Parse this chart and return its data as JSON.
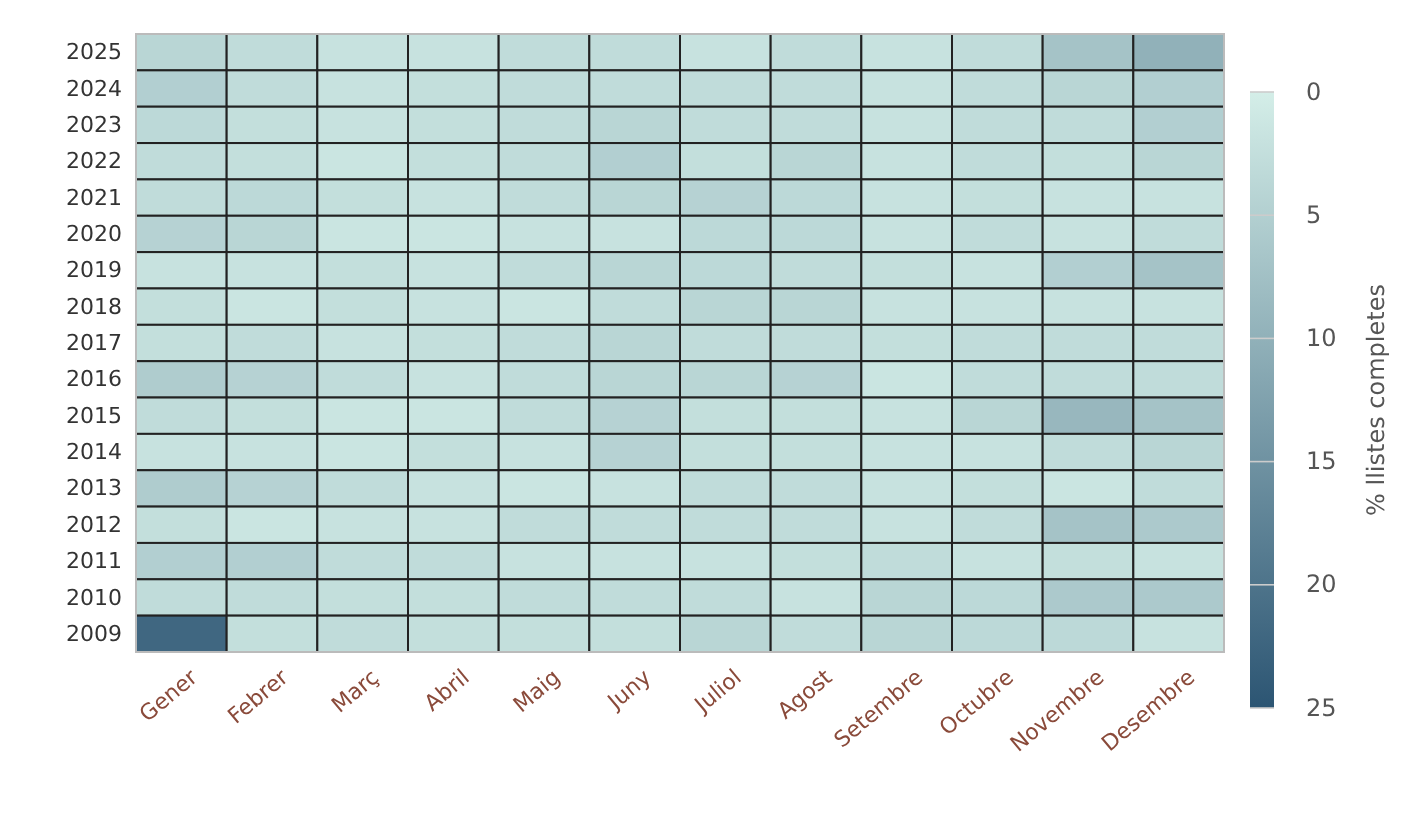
{
  "chart_data": {
    "type": "heatmap",
    "clabel": "% llistes completes",
    "categories": [
      "Gener",
      "Febrer",
      "Març",
      "Abril",
      "Maig",
      "Juny",
      "Juliol",
      "Agost",
      "Setembre",
      "Octubre",
      "Novembre",
      "Desembre"
    ],
    "y_categories": [
      "2025",
      "2024",
      "2023",
      "2022",
      "2021",
      "2020",
      "2019",
      "2018",
      "2017",
      "2016",
      "2015",
      "2014",
      "2013",
      "2012",
      "2011",
      "2010",
      "2009"
    ],
    "cells": [
      [
        4,
        3,
        2,
        2,
        3,
        3,
        2,
        3,
        2,
        3,
        7,
        10
      ],
      [
        5,
        3,
        2,
        2.5,
        3,
        3,
        3,
        3,
        2,
        3,
        4,
        5
      ],
      [
        3.5,
        2.5,
        2,
        2.5,
        3,
        4,
        3,
        3,
        2,
        3,
        3,
        5
      ],
      [
        3,
        2.5,
        1.5,
        2.5,
        3,
        5,
        2.5,
        4,
        2,
        3,
        2.5,
        4
      ],
      [
        3,
        3.5,
        2.5,
        2,
        3,
        4,
        4.5,
        3.5,
        2,
        2.5,
        2,
        2
      ],
      [
        4.5,
        4,
        1.5,
        1.5,
        2,
        2,
        3.5,
        3.5,
        2,
        3,
        2,
        3
      ],
      [
        2,
        2,
        2.5,
        2,
        3,
        4,
        3.5,
        3,
        2.5,
        2,
        5,
        7
      ],
      [
        2.5,
        1.5,
        2.5,
        2,
        1.5,
        3,
        4,
        4,
        2,
        2,
        2,
        2
      ],
      [
        2.5,
        3,
        2,
        2.5,
        3,
        4,
        3,
        3,
        2.5,
        3,
        3,
        3
      ],
      [
        5.5,
        4.5,
        3,
        2,
        3,
        4,
        4,
        4.5,
        1.5,
        3,
        3,
        3
      ],
      [
        3,
        2.5,
        1.5,
        1.5,
        3,
        4.5,
        2.5,
        2.5,
        2,
        4,
        9,
        7
      ],
      [
        2,
        2,
        1.5,
        2.5,
        2,
        4.5,
        2.5,
        2.5,
        2,
        2,
        3,
        4
      ],
      [
        5.5,
        4.5,
        3,
        2,
        1.5,
        2,
        3,
        3,
        2,
        2.5,
        1.5,
        3
      ],
      [
        2.5,
        1.5,
        2,
        2,
        3,
        3,
        3,
        3,
        2,
        3,
        7,
        6
      ],
      [
        5,
        5,
        3,
        3,
        2,
        2,
        2,
        2.5,
        3,
        2,
        2.5,
        2
      ],
      [
        3,
        3,
        2.5,
        2.5,
        3,
        3,
        3,
        2,
        4,
        3.5,
        6,
        6
      ],
      [
        22,
        2.5,
        3,
        2.5,
        2.5,
        2.5,
        4,
        3,
        4,
        3.5,
        3.5,
        2
      ]
    ],
    "clim": [
      0,
      25
    ],
    "cticks": [
      0,
      5,
      10,
      15,
      20,
      25
    ]
  }
}
